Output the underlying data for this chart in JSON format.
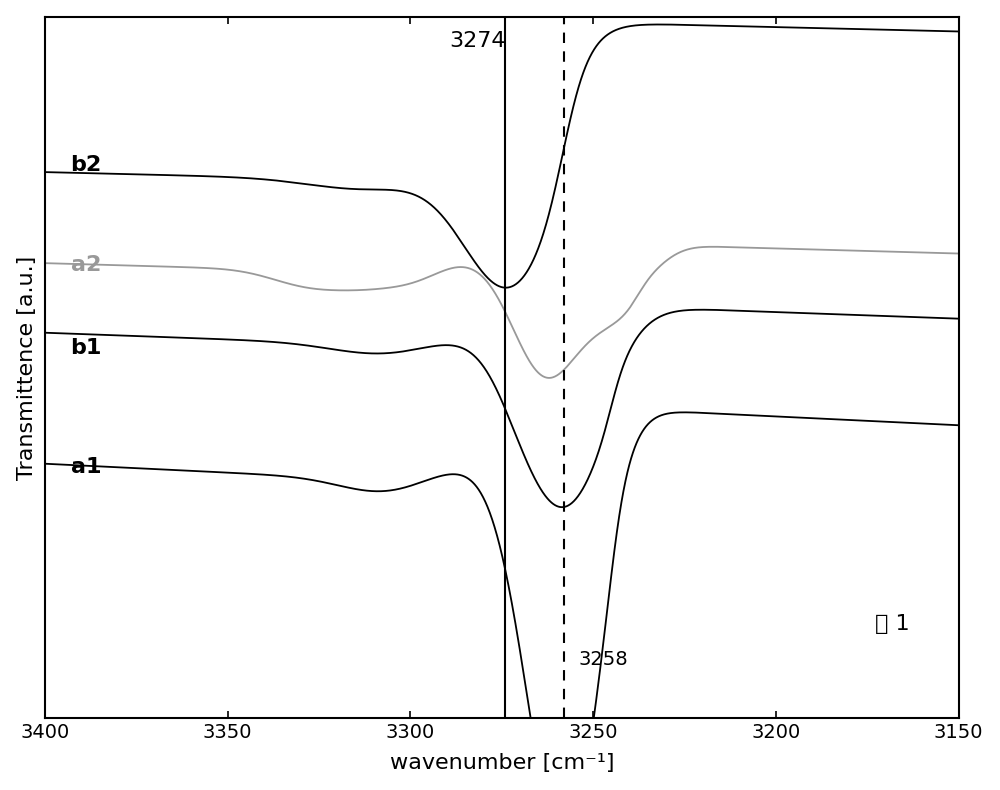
{
  "x_min": 3150,
  "x_max": 3400,
  "xlabel": "wavenumber [cm⁻¹]",
  "ylabel": "Transmittence [a.u.]",
  "line3274": 3274,
  "line3258": 3258,
  "annotation_fig": "图 1",
  "background_color": "#ffffff",
  "curve_color_black": "#000000",
  "curve_color_gray": "#999999",
  "tick_labels": [
    "3400",
    "3350",
    "3300",
    "3250",
    "3200",
    "3150"
  ],
  "tick_positions": [
    3400,
    3350,
    3300,
    3250,
    3200,
    3150
  ]
}
